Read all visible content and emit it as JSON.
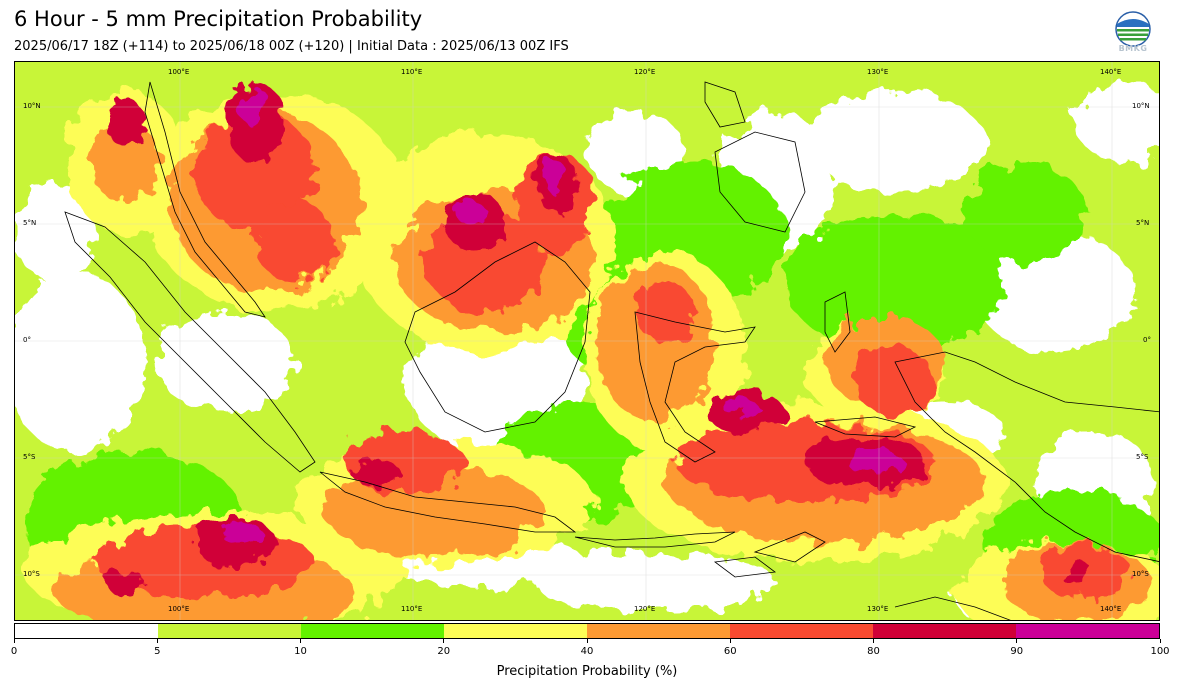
{
  "header": {
    "title": "6 Hour - 5 mm Precipitation Probability",
    "subtitle": "2025/06/17 18Z (+114) to 2025/06/18 00Z (+120) | Initial Data : 2025/06/13 00Z IFS"
  },
  "logo": {
    "icon": "bmkg-logo-icon",
    "text": "BMKG"
  },
  "map": {
    "lon_labels_top": [
      "100°E",
      "110°E",
      "120°E",
      "130°E",
      "140°E"
    ],
    "lon_labels_bottom": [
      "100°E",
      "110°E",
      "120°E",
      "130°E",
      "140°E"
    ],
    "lat_labels_left": [
      "10°N",
      "5°N",
      "0°",
      "5°S",
      "10°S"
    ],
    "lat_labels_right": [
      "10°N",
      "5°N",
      "0°",
      "5°S",
      "10°S"
    ],
    "lon_range": [
      95,
      144
    ],
    "lat_range": [
      11,
      -12
    ],
    "grid": true
  },
  "colorbar": {
    "ticks": [
      "0",
      "5",
      "10",
      "20",
      "40",
      "60",
      "80",
      "90",
      "100"
    ],
    "colors": [
      "#ffffff",
      "#c8f537",
      "#63f200",
      "#fdfd57",
      "#fd9a33",
      "#f94a30",
      "#d00037",
      "#cb0098"
    ],
    "label": "Precipitation Probability (%)"
  }
}
